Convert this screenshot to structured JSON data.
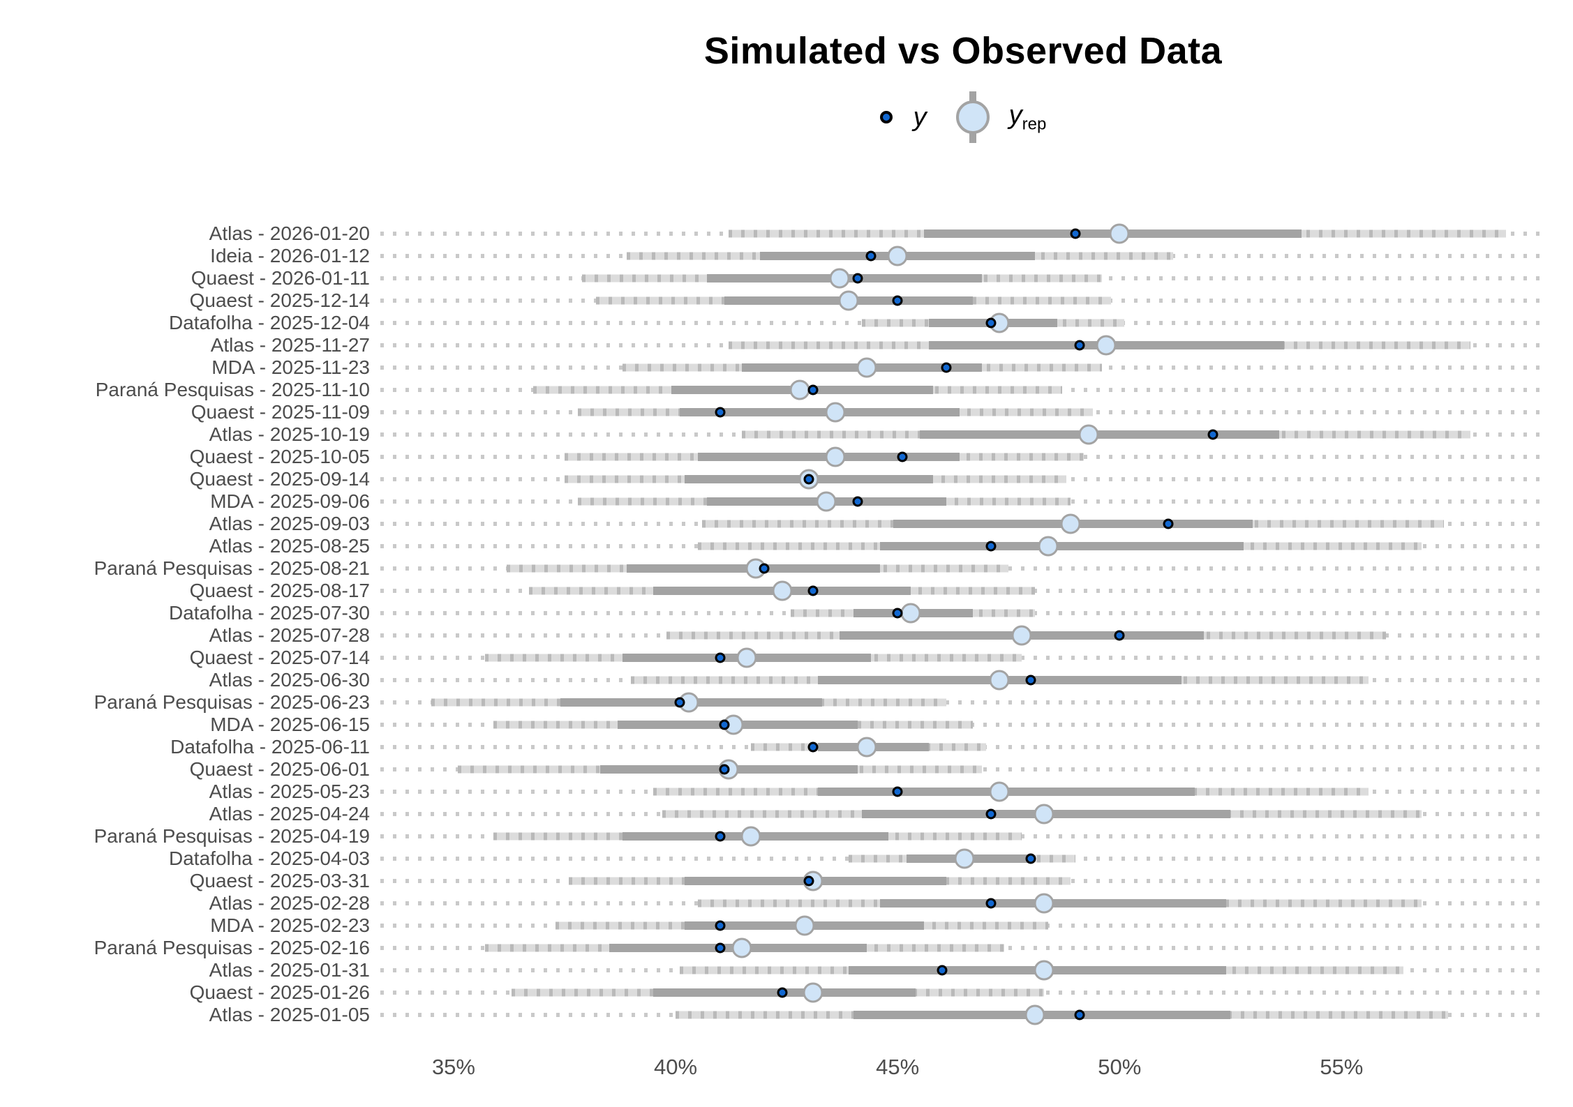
{
  "title": "Simulated vs Observed Data",
  "legend": {
    "y_label": "y",
    "yrep_base": "y",
    "yrep_sub": "rep"
  },
  "colors": {
    "y_fill": "#1268d1",
    "y_stroke": "#000000",
    "yrep_fill": "#d0e4f7",
    "yrep_stroke": "#a3a3a3",
    "inner_band": "#a3a3a3",
    "outer_band": "#dcdcdc",
    "outer_band_dash": "#b9b9b9",
    "dotted_line": "#c9c9c9",
    "axis_text": "#4d4d4d",
    "title_text": "#000000"
  },
  "chart_data": {
    "type": "interval-dot posterior predictive check (y vs y_rep medians with 50%/90% intervals)",
    "x_unit": "percent",
    "xlim": [
      33.35,
      59.6
    ],
    "grid": "dotted horizontal row guides",
    "legend_position": "top-center",
    "x_ticks": [
      {
        "label": "35%",
        "value": 35
      },
      {
        "label": "40%",
        "value": 40
      },
      {
        "label": "45%",
        "value": 45
      },
      {
        "label": "50%",
        "value": 50
      },
      {
        "label": "55%",
        "value": 55
      }
    ],
    "rows": [
      {
        "label": "Atlas - 2026-01-20",
        "y": 49.0,
        "yrep": 50.0,
        "inner": [
          45.6,
          54.1
        ],
        "outer": [
          41.2,
          58.7
        ]
      },
      {
        "label": "Ideia - 2026-01-12",
        "y": 44.4,
        "yrep": 45.0,
        "inner": [
          41.9,
          48.1
        ],
        "outer": [
          38.9,
          51.2
        ]
      },
      {
        "label": "Quaest - 2026-01-11",
        "y": 44.1,
        "yrep": 43.7,
        "inner": [
          40.7,
          46.9
        ],
        "outer": [
          37.9,
          49.6
        ]
      },
      {
        "label": "Quaest - 2025-12-14",
        "y": 45.0,
        "yrep": 43.9,
        "inner": [
          41.1,
          46.7
        ],
        "outer": [
          38.2,
          49.8
        ]
      },
      {
        "label": "Datafolha - 2025-12-04",
        "y": 47.1,
        "yrep": 47.3,
        "inner": [
          45.7,
          48.6
        ],
        "outer": [
          44.2,
          50.1
        ]
      },
      {
        "label": "Atlas - 2025-11-27",
        "y": 49.1,
        "yrep": 49.7,
        "inner": [
          45.7,
          53.7
        ],
        "outer": [
          41.2,
          57.9
        ]
      },
      {
        "label": "MDA - 2025-11-23",
        "y": 46.1,
        "yrep": 44.3,
        "inner": [
          41.5,
          46.9
        ],
        "outer": [
          38.8,
          49.6
        ]
      },
      {
        "label": "Paraná Pesquisas - 2025-11-10",
        "y": 43.1,
        "yrep": 42.8,
        "inner": [
          39.9,
          45.8
        ],
        "outer": [
          36.8,
          48.7
        ]
      },
      {
        "label": "Quaest - 2025-11-09",
        "y": 41.0,
        "yrep": 43.6,
        "inner": [
          40.1,
          46.4
        ],
        "outer": [
          37.8,
          49.4
        ]
      },
      {
        "label": "Atlas - 2025-10-19",
        "y": 52.1,
        "yrep": 49.3,
        "inner": [
          45.5,
          53.6
        ],
        "outer": [
          41.5,
          57.9
        ]
      },
      {
        "label": "Quaest - 2025-10-05",
        "y": 45.1,
        "yrep": 43.6,
        "inner": [
          40.5,
          46.4
        ],
        "outer": [
          37.5,
          49.2
        ]
      },
      {
        "label": "Quaest - 2025-09-14",
        "y": 43.0,
        "yrep": 43.0,
        "inner": [
          40.2,
          45.8
        ],
        "outer": [
          37.5,
          48.8
        ]
      },
      {
        "label": "MDA - 2025-09-06",
        "y": 44.1,
        "yrep": 43.4,
        "inner": [
          40.7,
          46.1
        ],
        "outer": [
          37.8,
          48.9
        ]
      },
      {
        "label": "Atlas - 2025-09-03",
        "y": 51.1,
        "yrep": 48.9,
        "inner": [
          44.9,
          53.0
        ],
        "outer": [
          40.6,
          57.3
        ]
      },
      {
        "label": "Atlas - 2025-08-25",
        "y": 47.1,
        "yrep": 48.4,
        "inner": [
          44.6,
          52.8
        ],
        "outer": [
          40.5,
          56.8
        ]
      },
      {
        "label": "Paraná Pesquisas - 2025-08-21",
        "y": 42.0,
        "yrep": 41.8,
        "inner": [
          38.9,
          44.6
        ],
        "outer": [
          36.2,
          47.5
        ]
      },
      {
        "label": "Quaest - 2025-08-17",
        "y": 43.1,
        "yrep": 42.4,
        "inner": [
          39.5,
          45.3
        ],
        "outer": [
          36.7,
          48.1
        ]
      },
      {
        "label": "Datafolha - 2025-07-30",
        "y": 45.0,
        "yrep": 45.3,
        "inner": [
          44.0,
          46.7
        ],
        "outer": [
          42.6,
          48.1
        ]
      },
      {
        "label": "Atlas - 2025-07-28",
        "y": 50.0,
        "yrep": 47.8,
        "inner": [
          43.7,
          51.9
        ],
        "outer": [
          39.8,
          56.0
        ]
      },
      {
        "label": "Quaest - 2025-07-14",
        "y": 41.0,
        "yrep": 41.6,
        "inner": [
          38.8,
          44.4
        ],
        "outer": [
          35.7,
          47.8
        ]
      },
      {
        "label": "Atlas - 2025-06-30",
        "y": 48.0,
        "yrep": 47.3,
        "inner": [
          43.2,
          51.4
        ],
        "outer": [
          39.0,
          55.6
        ]
      },
      {
        "label": "Paraná Pesquisas - 2025-06-23",
        "y": 40.1,
        "yrep": 40.3,
        "inner": [
          37.4,
          43.3
        ],
        "outer": [
          34.5,
          46.1
        ]
      },
      {
        "label": "MDA - 2025-06-15",
        "y": 41.1,
        "yrep": 41.3,
        "inner": [
          38.7,
          44.1
        ],
        "outer": [
          35.9,
          46.7
        ]
      },
      {
        "label": "Datafolha - 2025-06-11",
        "y": 43.1,
        "yrep": 44.3,
        "inner": [
          43.2,
          45.7
        ],
        "outer": [
          41.7,
          47.0
        ]
      },
      {
        "label": "Quaest - 2025-06-01",
        "y": 41.1,
        "yrep": 41.2,
        "inner": [
          38.3,
          44.1
        ],
        "outer": [
          35.1,
          46.9
        ]
      },
      {
        "label": "Atlas - 2025-05-23",
        "y": 45.0,
        "yrep": 47.3,
        "inner": [
          43.2,
          51.7
        ],
        "outer": [
          39.5,
          55.6
        ]
      },
      {
        "label": "Atlas - 2025-04-24",
        "y": 47.1,
        "yrep": 48.3,
        "inner": [
          44.2,
          52.5
        ],
        "outer": [
          39.7,
          56.8
        ]
      },
      {
        "label": "Paraná Pesquisas - 2025-04-19",
        "y": 41.0,
        "yrep": 41.7,
        "inner": [
          38.8,
          44.8
        ],
        "outer": [
          35.9,
          47.8
        ]
      },
      {
        "label": "Datafolha - 2025-04-03",
        "y": 48.0,
        "yrep": 46.5,
        "inner": [
          45.2,
          48.0
        ],
        "outer": [
          43.9,
          49.0
        ]
      },
      {
        "label": "Quaest - 2025-03-31",
        "y": 43.0,
        "yrep": 43.1,
        "inner": [
          40.2,
          46.1
        ],
        "outer": [
          37.6,
          48.9
        ]
      },
      {
        "label": "Atlas - 2025-02-28",
        "y": 47.1,
        "yrep": 48.3,
        "inner": [
          44.6,
          52.4
        ],
        "outer": [
          40.5,
          56.8
        ]
      },
      {
        "label": "MDA - 2025-02-23",
        "y": 41.0,
        "yrep": 42.9,
        "inner": [
          40.2,
          45.6
        ],
        "outer": [
          37.3,
          48.4
        ]
      },
      {
        "label": "Paraná Pesquisas - 2025-02-16",
        "y": 41.0,
        "yrep": 41.5,
        "inner": [
          38.5,
          44.3
        ],
        "outer": [
          35.7,
          47.4
        ]
      },
      {
        "label": "Atlas - 2025-01-31",
        "y": 46.0,
        "yrep": 48.3,
        "inner": [
          43.9,
          52.4
        ],
        "outer": [
          40.1,
          56.4
        ]
      },
      {
        "label": "Quaest - 2025-01-26",
        "y": 42.4,
        "yrep": 43.1,
        "inner": [
          39.5,
          45.4
        ],
        "outer": [
          36.3,
          48.3
        ]
      },
      {
        "label": "Atlas - 2025-01-05",
        "y": 49.1,
        "yrep": 48.1,
        "inner": [
          44.0,
          52.5
        ],
        "outer": [
          40.0,
          57.4
        ]
      }
    ]
  }
}
